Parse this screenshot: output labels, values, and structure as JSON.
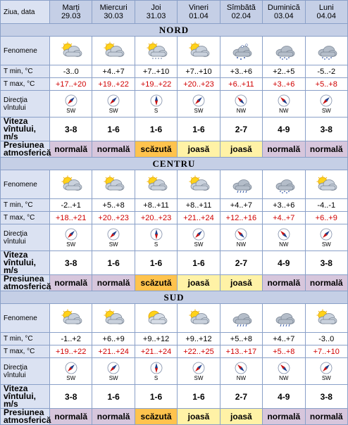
{
  "header": {
    "first": "Ziua, data",
    "days": [
      {
        "name": "Marți",
        "date": "29.03"
      },
      {
        "name": "Miercuri",
        "date": "30.03"
      },
      {
        "name": "Joi",
        "date": "31.03"
      },
      {
        "name": "Vineri",
        "date": "01.04"
      },
      {
        "name": "Sîmbătă",
        "date": "02.04"
      },
      {
        "name": "Duminică",
        "date": "03.04"
      },
      {
        "name": "Luni",
        "date": "04.04"
      }
    ]
  },
  "labels": {
    "fenomene": "Fenomene",
    "tmin": "T min, °C",
    "tmax": "T max, °C",
    "dir1": "Direcţia",
    "dir2": "vîntului",
    "speed1": "Viteza",
    "speed2": "vîntului, m/s",
    "press1": "Presiunea",
    "press2": "atmosferică"
  },
  "colors": {
    "header_bg": "#c5cfe6",
    "label_bg": "#dbe2f2",
    "tmax_text": "#d00000",
    "press_normal": "#d7c6dc",
    "press_scazuta": "#ffc34d",
    "press_joasa": "#fff2a6"
  },
  "regions": [
    {
      "name": "NORD",
      "icons": [
        "partly-cloudy-icon",
        "partly-cloudy-icon",
        "cloudy-drizzle-icon",
        "partly-cloudy-icon",
        "sleet-icon",
        "cloudy-snow-icon",
        "cloudy-snow-icon"
      ],
      "tmin": [
        "-3..0",
        "+4..+7",
        "+7..+10",
        "+7..+10",
        "+3..+6",
        "+2..+5",
        "-5..-2"
      ],
      "tmax": [
        "+17..+20",
        "+19..+22",
        "+19..+22",
        "+20..+23",
        "+6..+11",
        "+3..+6",
        "+5..+8"
      ],
      "wind_dir": [
        "SW",
        "SW",
        "S",
        "SW",
        "NW",
        "NW",
        "SW"
      ],
      "wind_speed": [
        "3-8",
        "1-6",
        "1-6",
        "1-6",
        "2-7",
        "4-9",
        "3-8"
      ],
      "pressure": [
        "normală",
        "normală",
        "scăzută",
        "joasă",
        "joasă",
        "normală",
        "normală"
      ]
    },
    {
      "name": "CENTRU",
      "icons": [
        "partly-cloudy-icon",
        "partly-cloudy-icon",
        "partly-cloudy-icon",
        "partly-cloudy-icon",
        "cloudy-rain-icon",
        "cloudy-snow-icon",
        "partly-cloudy-icon"
      ],
      "tmin": [
        "-2..+1",
        "+5..+8",
        "+8..+11",
        "+8..+11",
        "+4..+7",
        "+3..+6",
        "-4..-1"
      ],
      "tmax": [
        "+18..+21",
        "+20..+23",
        "+20..+23",
        "+21..+24",
        "+12..+16",
        "+4..+7",
        "+6..+9"
      ],
      "wind_dir": [
        "SW",
        "SW",
        "S",
        "SW",
        "NW",
        "NW",
        "SW"
      ],
      "wind_speed": [
        "3-8",
        "1-6",
        "1-6",
        "1-6",
        "2-7",
        "4-9",
        "3-8"
      ],
      "pressure": [
        "normală",
        "normală",
        "scăzută",
        "joasă",
        "joasă",
        "normală",
        "normală"
      ]
    },
    {
      "name": "SUD",
      "icons": [
        "partly-cloudy-icon",
        "partly-cloudy-icon",
        "sunny-cloudy-icon",
        "partly-cloudy-icon",
        "cloudy-rain-icon",
        "cloudy-rain-icon",
        "partly-cloudy-icon"
      ],
      "tmin": [
        "-1..+2",
        "+6..+9",
        "+9..+12",
        "+9..+12",
        "+5..+8",
        "+4..+7",
        "-3..0"
      ],
      "tmax": [
        "+19..+22",
        "+21..+24",
        "+21..+24",
        "+22..+25",
        "+13..+17",
        "+5..+8",
        "+7..+10"
      ],
      "wind_dir": [
        "SW",
        "SW",
        "S",
        "SW",
        "NW",
        "NW",
        "SW"
      ],
      "wind_speed": [
        "3-8",
        "1-6",
        "1-6",
        "1-6",
        "2-7",
        "4-9",
        "3-8"
      ],
      "pressure": [
        "normală",
        "normală",
        "scăzută",
        "joasă",
        "joasă",
        "normală",
        "normală"
      ]
    }
  ]
}
